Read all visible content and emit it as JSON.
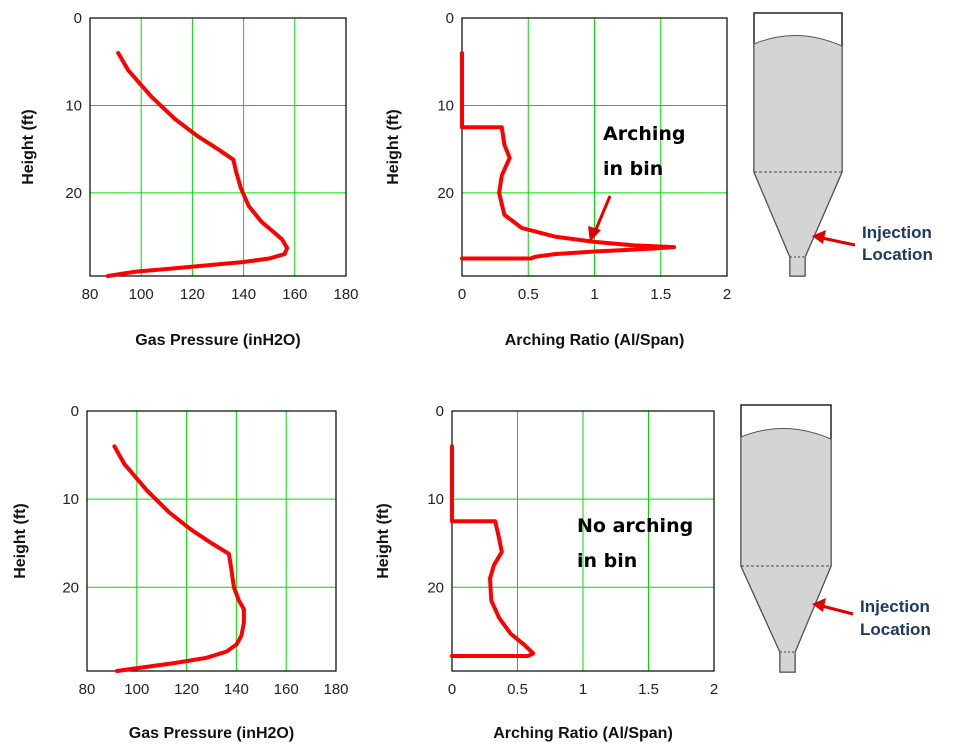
{
  "chart_data": [
    {
      "type": "line",
      "xlabel": "Gas Pressure (inH2O)",
      "ylabel": "Height (ft)",
      "xlim": [
        80,
        180
      ],
      "ylim": [
        0,
        29.5
      ],
      "y_inverted": true,
      "xticks": [
        80,
        100,
        120,
        140,
        160,
        180
      ],
      "yticks": [
        0,
        10,
        20
      ],
      "grid": true,
      "series": [
        {
          "color": "#ff0000",
          "x": [
            91,
            95,
            104,
            113,
            122,
            130,
            136,
            137,
            139,
            142,
            147,
            151,
            155,
            157,
            156,
            150,
            140,
            125,
            110,
            98,
            91,
            87
          ],
          "y": [
            4,
            6,
            9,
            11.5,
            13.5,
            15,
            16.2,
            17.5,
            19.5,
            21.5,
            23.3,
            24.3,
            25.3,
            26.3,
            27,
            27.5,
            27.9,
            28.3,
            28.7,
            29,
            29.3,
            29.5
          ]
        }
      ]
    },
    {
      "type": "line",
      "xlabel": "Arching Ratio (Al/Span)",
      "ylabel": "Height (ft)",
      "xlim": [
        0,
        2
      ],
      "ylim": [
        0,
        29.5
      ],
      "y_inverted": true,
      "xticks": [
        0,
        0.5,
        1,
        1.5,
        2
      ],
      "xtick_labels": [
        "0",
        "0.5",
        "1",
        "1.5",
        "2"
      ],
      "yticks": [
        0,
        10,
        20
      ],
      "grid": true,
      "annotation": "Arching in bin",
      "series": [
        {
          "color": "#ff0000",
          "x": [
            0,
            0,
            0.3,
            0.32,
            0.36,
            0.3,
            0.28,
            0.32,
            0.45,
            0.7,
            1.0,
            1.3,
            1.6,
            1.4,
            1.0,
            0.7,
            0.55,
            0.52,
            0
          ],
          "y": [
            4,
            12.5,
            12.5,
            14.5,
            16,
            18,
            20,
            22.5,
            24,
            25,
            25.6,
            26,
            26.2,
            26.4,
            26.7,
            27,
            27.3,
            27.5,
            27.5
          ]
        }
      ]
    },
    {
      "type": "line",
      "xlabel": "Gas Pressure (inH2O)",
      "ylabel": "Height (ft)",
      "xlim": [
        80,
        180
      ],
      "ylim": [
        0,
        29.5
      ],
      "y_inverted": true,
      "xticks": [
        80,
        100,
        120,
        140,
        160,
        180
      ],
      "yticks": [
        0,
        10,
        20
      ],
      "grid": true,
      "series": [
        {
          "color": "#ff0000",
          "x": [
            91,
            95,
            104,
            113,
            122,
            130,
            137,
            138,
            139,
            141,
            143,
            143,
            142,
            140,
            136,
            128,
            115,
            102,
            92
          ],
          "y": [
            4,
            6,
            9,
            11.5,
            13.5,
            15,
            16.2,
            18,
            20,
            21.5,
            22.5,
            24,
            25.5,
            26.5,
            27.3,
            28,
            28.6,
            29.1,
            29.5
          ]
        }
      ]
    },
    {
      "type": "line",
      "xlabel": "Arching Ratio (Al/Span)",
      "ylabel": "Height (ft)",
      "xlim": [
        0,
        2
      ],
      "ylim": [
        0,
        29.5
      ],
      "y_inverted": true,
      "xticks": [
        0,
        0.5,
        1,
        1.5,
        2
      ],
      "xtick_labels": [
        "0",
        "0.5",
        "1",
        "1.5",
        "2"
      ],
      "yticks": [
        0,
        10,
        20
      ],
      "grid": true,
      "annotation": "No arching in bin",
      "series": [
        {
          "color": "#ff0000",
          "x": [
            0,
            0,
            0.33,
            0.36,
            0.38,
            0.32,
            0.29,
            0.3,
            0.36,
            0.45,
            0.55,
            0.62,
            0.58,
            0
          ],
          "y": [
            4,
            12.5,
            12.5,
            14.5,
            16,
            17.5,
            19,
            21.5,
            23.5,
            25.3,
            26.5,
            27.5,
            27.8,
            27.8
          ]
        }
      ]
    }
  ],
  "annotations": {
    "top_arching": [
      "Arching",
      "in bin"
    ],
    "bottom_arching": [
      "No arching",
      "in bin"
    ],
    "top_injection": [
      "Injection",
      "Location"
    ],
    "bottom_injection": [
      "Injection",
      "Location"
    ]
  },
  "colors": {
    "curve": "#ff0000",
    "grid": "#00dd00",
    "arrow": "#e00000",
    "bin_fill": "#d4d4d4"
  }
}
